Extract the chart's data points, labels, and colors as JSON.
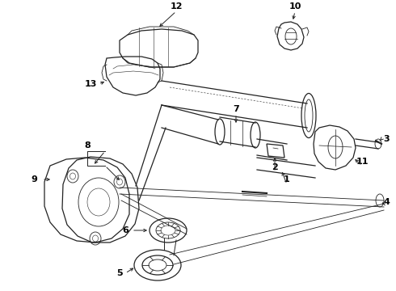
{
  "bg_color": "#ffffff",
  "line_color": "#222222",
  "label_color": "#000000",
  "fig_width": 4.9,
  "fig_height": 3.6,
  "dpi": 100,
  "label_fontsize": 8.0
}
